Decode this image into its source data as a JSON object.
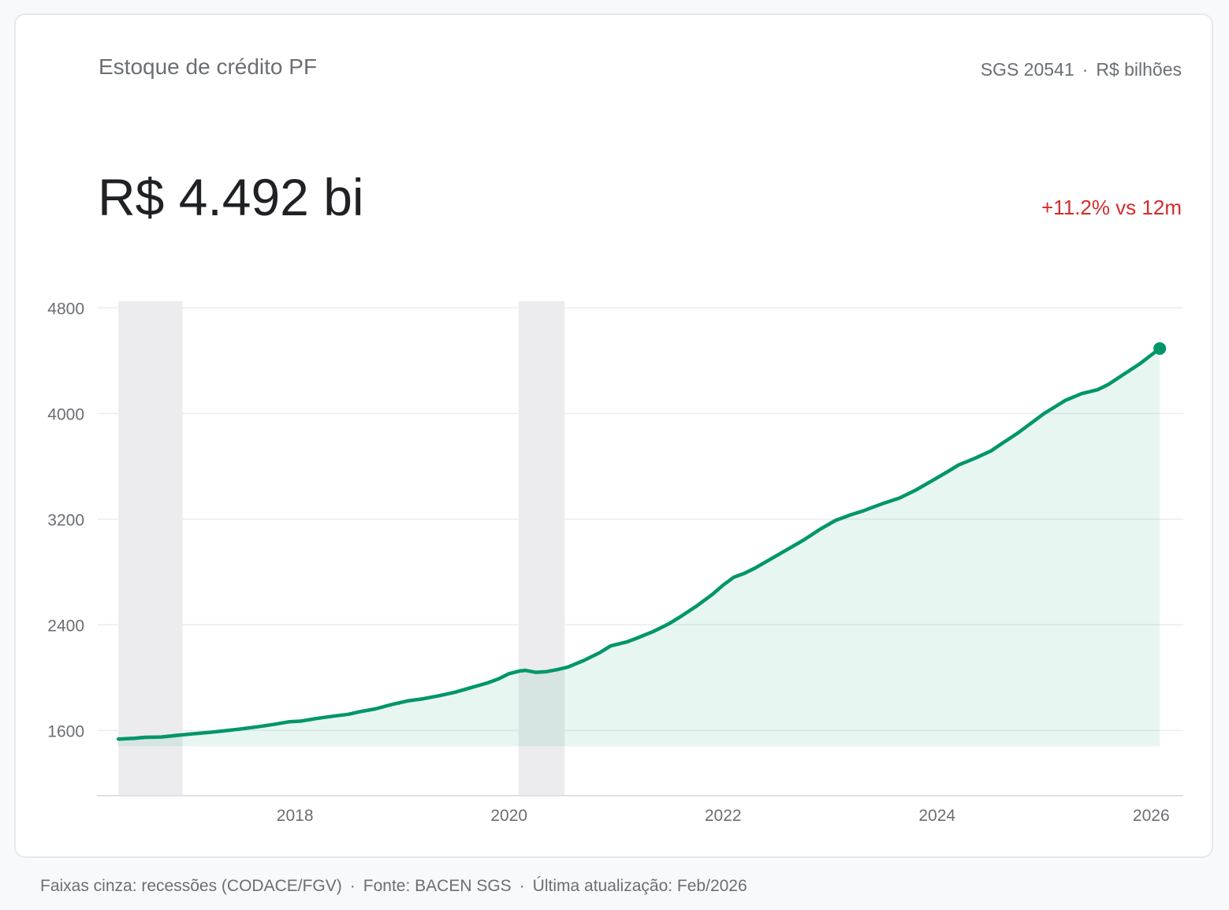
{
  "header": {
    "title": "Estoque de crédito PF",
    "series_code": "SGS 20541",
    "unit": "R$ bilhões",
    "separator": "·"
  },
  "headline": {
    "value": "R$ 4.492 bi",
    "change": "+11.2% vs 12m"
  },
  "footer": {
    "recession_note": "Faixas cinza: recessões (CODACE/FGV)",
    "source": "Fonte: BACEN SGS",
    "updated": "Última atualização: Feb/2026"
  },
  "colors": {
    "line": "#00966a",
    "area": "#e8f4ef",
    "recession": "#ececee",
    "change": "#d62b2b"
  },
  "chart_data": {
    "type": "area",
    "title": "Estoque de crédito PF",
    "xlabel": "",
    "ylabel": "",
    "ylim": [
      1100,
      4850
    ],
    "xlim": [
      2016.15,
      2026.3
    ],
    "yticks": [
      1600,
      2400,
      3200,
      4000,
      4800
    ],
    "xticks": [
      2018,
      2020,
      2022,
      2024,
      2026
    ],
    "grid": true,
    "recessions": [
      {
        "start": 2016.35,
        "end": 2016.95
      },
      {
        "start": 2020.09,
        "end": 2020.52
      }
    ],
    "series": [
      {
        "x": [
          2016.35,
          2016.5,
          2016.6,
          2016.75,
          2016.9,
          2017.05,
          2017.2,
          2017.35,
          2017.5,
          2017.65,
          2017.8,
          2017.95,
          2018.05,
          2018.2,
          2018.35,
          2018.5,
          2018.6,
          2018.75,
          2018.9,
          2019.05,
          2019.2,
          2019.35,
          2019.5,
          2019.65,
          2019.8,
          2019.9,
          2020.0,
          2020.1,
          2020.15,
          2020.25,
          2020.35,
          2020.45,
          2020.55,
          2020.7,
          2020.85,
          2020.95,
          2021.1,
          2021.2,
          2021.35,
          2021.5,
          2021.6,
          2021.75,
          2021.9,
          2022.0,
          2022.1,
          2022.2,
          2022.3,
          2022.45,
          2022.6,
          2022.75,
          2022.9,
          2023.05,
          2023.2,
          2023.3,
          2023.4,
          2023.5,
          2023.65,
          2023.8,
          2023.95,
          2024.1,
          2024.2,
          2024.35,
          2024.5,
          2024.6,
          2024.75,
          2024.9,
          2025.0,
          2025.1,
          2025.2,
          2025.35,
          2025.5,
          2025.6,
          2025.75,
          2025.9,
          2026.08
        ],
        "values": [
          1535,
          1540,
          1548,
          1550,
          1563,
          1575,
          1585,
          1598,
          1612,
          1627,
          1645,
          1666,
          1670,
          1690,
          1707,
          1722,
          1741,
          1763,
          1795,
          1823,
          1840,
          1863,
          1890,
          1925,
          1960,
          1990,
          2030,
          2050,
          2055,
          2040,
          2045,
          2060,
          2080,
          2130,
          2190,
          2240,
          2270,
          2300,
          2350,
          2410,
          2460,
          2540,
          2630,
          2700,
          2760,
          2790,
          2830,
          2900,
          2970,
          3040,
          3120,
          3190,
          3235,
          3260,
          3290,
          3320,
          3360,
          3420,
          3490,
          3560,
          3610,
          3660,
          3715,
          3770,
          3850,
          3940,
          4000,
          4050,
          4100,
          4150,
          4180,
          4220,
          4300,
          4380,
          4492
        ]
      }
    ]
  }
}
